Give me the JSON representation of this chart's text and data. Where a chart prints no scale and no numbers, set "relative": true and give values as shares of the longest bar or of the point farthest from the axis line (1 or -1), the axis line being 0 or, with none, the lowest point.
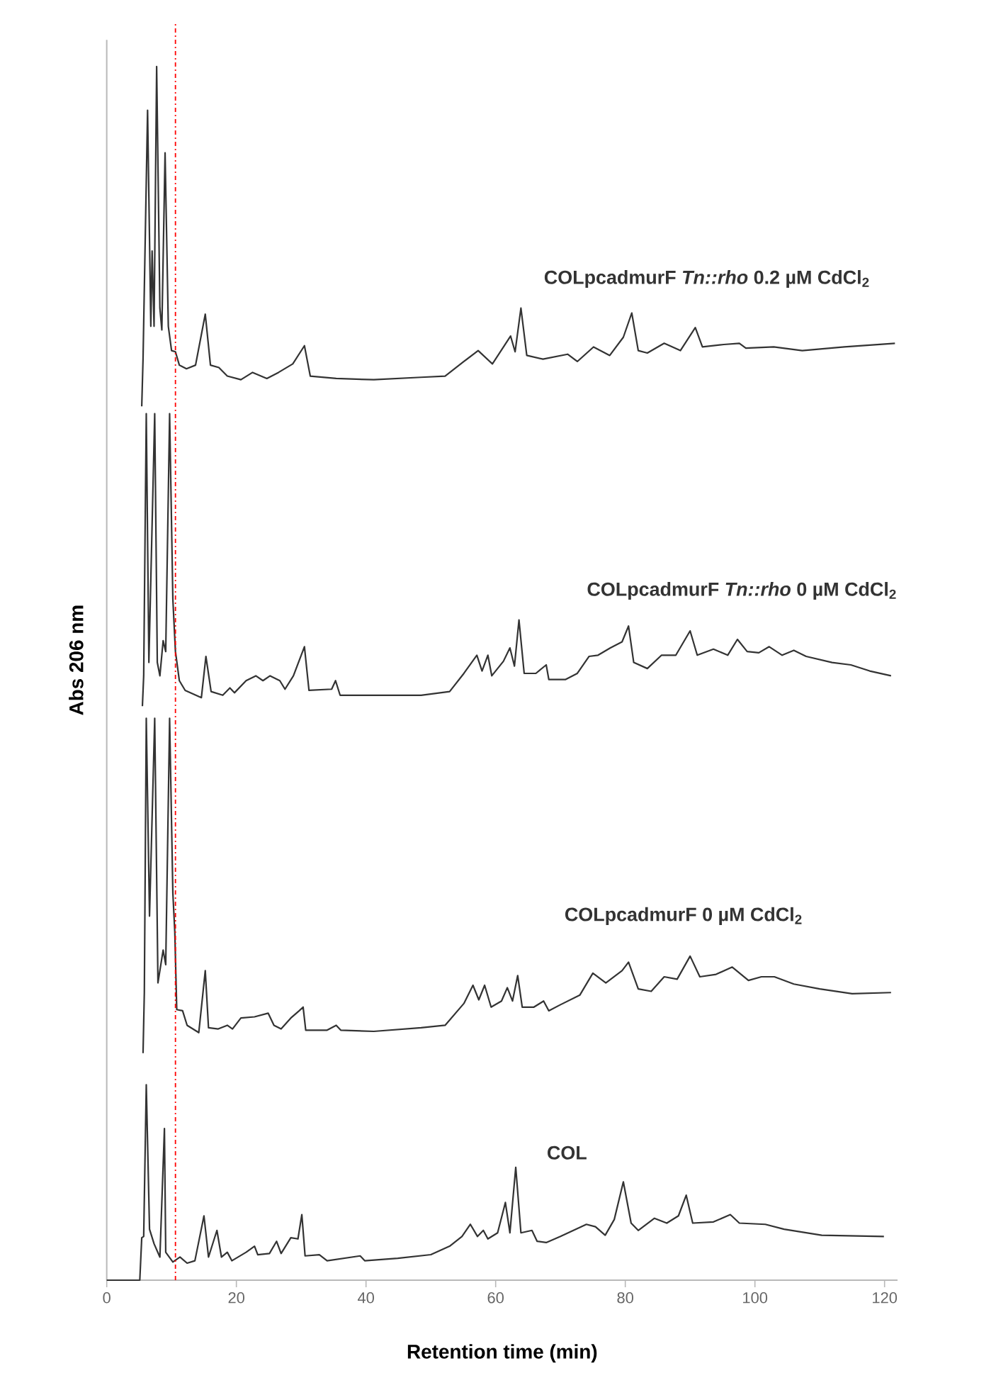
{
  "chart_data": {
    "type": "line",
    "relative": true,
    "xlabel": "Retention time (min)",
    "ylabel": "Abs 206 nm",
    "xlim": [
      0,
      122
    ],
    "xticks": [
      0,
      20,
      40,
      60,
      80,
      100,
      120
    ],
    "ref_lines": [
      {
        "axis": "x",
        "value": 10.6,
        "color": "#ff0000",
        "line_style": "dashdot"
      }
    ],
    "series": [
      {
        "name": "COLpcadmurF  *Tn::rho* 0.2 µM CdCl$_{2}$",
        "color": "#333333",
        "x": [
          5.4,
          5.6,
          6.3,
          6.8,
          7.0,
          7.3,
          7.7,
          8.2,
          8.5,
          9.0,
          9.5,
          10.0,
          10.6,
          11.2,
          12.3,
          13.7,
          15.2,
          16.0,
          17.3,
          18.6,
          20.7,
          22.5,
          24.7,
          26.5,
          28.7,
          30.5,
          31.4,
          35.4,
          41.2,
          48.5,
          52.2,
          55.1,
          57.3,
          59.5,
          62.3,
          63.0,
          63.9,
          64.8,
          67.3,
          71.1,
          72.6,
          75.1,
          77.6,
          79.7,
          81.0,
          82.0,
          83.4,
          86.0,
          88.5,
          90.8,
          91.9,
          95.2,
          97.6,
          98.6,
          102.9,
          107.3,
          113.8,
          121.6
        ],
        "values": [
          0.72,
          0.759,
          0.964,
          0.786,
          0.848,
          0.786,
          1.0,
          0.801,
          0.783,
          0.929,
          0.786,
          0.766,
          0.765,
          0.754,
          0.751,
          0.754,
          0.796,
          0.754,
          0.752,
          0.745,
          0.742,
          0.748,
          0.743,
          0.748,
          0.755,
          0.77,
          0.745,
          0.743,
          0.742,
          0.744,
          0.745,
          0.757,
          0.766,
          0.755,
          0.778,
          0.765,
          0.801,
          0.762,
          0.759,
          0.763,
          0.757,
          0.769,
          0.762,
          0.777,
          0.797,
          0.766,
          0.764,
          0.772,
          0.766,
          0.785,
          0.769,
          0.771,
          0.772,
          0.768,
          0.769,
          0.766,
          0.769,
          0.772
        ]
      },
      {
        "name": "COLpcadmurF  *Tn::rho* 0 µM CdCl$_{2}$",
        "color": "#333333",
        "x": [
          5.5,
          5.7,
          6.1,
          6.5,
          7.4,
          7.8,
          8.2,
          8.7,
          9.1,
          9.7,
          10.2,
          10.6,
          11.2,
          12.1,
          14.6,
          15.3,
          16.1,
          17.9,
          19.0,
          19.7,
          21.5,
          23.0,
          24.1,
          25.2,
          26.7,
          27.5,
          28.8,
          30.5,
          31.2,
          34.7,
          35.3,
          36.0,
          41.2,
          48.5,
          52.9,
          55.1,
          57.1,
          57.9,
          58.8,
          59.4,
          61.2,
          62.2,
          62.9,
          63.6,
          64.4,
          66.2,
          67.8,
          68.2,
          70.8,
          72.6,
          74.4,
          75.8,
          77.7,
          79.5,
          80.5,
          81.3,
          83.4,
          85.6,
          87.8,
          90.0,
          91.1,
          93.6,
          95.8,
          97.3,
          98.8,
          100.6,
          102.2,
          104.2,
          106.0,
          107.9,
          111.9,
          114.8,
          117.7,
          121.0
        ],
        "values": [
          0.473,
          0.498,
          0.714,
          0.509,
          0.714,
          0.509,
          0.498,
          0.527,
          0.518,
          0.714,
          0.561,
          0.518,
          0.494,
          0.486,
          0.48,
          0.514,
          0.485,
          0.482,
          0.488,
          0.484,
          0.494,
          0.498,
          0.494,
          0.498,
          0.494,
          0.487,
          0.498,
          0.522,
          0.486,
          0.487,
          0.494,
          0.482,
          0.482,
          0.482,
          0.485,
          0.5,
          0.515,
          0.502,
          0.515,
          0.498,
          0.51,
          0.521,
          0.506,
          0.544,
          0.5,
          0.5,
          0.507,
          0.495,
          0.495,
          0.5,
          0.514,
          0.515,
          0.521,
          0.526,
          0.539,
          0.509,
          0.504,
          0.515,
          0.515,
          0.535,
          0.515,
          0.52,
          0.515,
          0.528,
          0.518,
          0.517,
          0.522,
          0.515,
          0.519,
          0.514,
          0.509,
          0.507,
          0.502,
          0.498
        ]
      },
      {
        "name": "COLpcadmurF 0 µM CdCl$_{2}$",
        "color": "#333333",
        "x": [
          5.6,
          5.8,
          6.1,
          6.6,
          7.4,
          7.9,
          8.7,
          9.1,
          9.7,
          10.2,
          10.5,
          10.8,
          11.7,
          12.4,
          14.2,
          15.2,
          15.7,
          17.2,
          18.6,
          19.4,
          20.7,
          22.8,
          24.9,
          25.8,
          26.9,
          28.4,
          29.7,
          30.3,
          30.7,
          34.0,
          35.4,
          36.1,
          41.2,
          48.5,
          52.2,
          55.1,
          56.5,
          57.4,
          58.3,
          59.3,
          60.9,
          61.8,
          62.6,
          63.4,
          64.1,
          65.9,
          67.4,
          68.2,
          70,
          73,
          75,
          77,
          79.5,
          80.5,
          82,
          84,
          86,
          88,
          90,
          91.5,
          94,
          96.5,
          99,
          101,
          103,
          106,
          110,
          115,
          121
        ],
        "values": [
          0.187,
          0.237,
          0.463,
          0.3,
          0.463,
          0.245,
          0.272,
          0.26,
          0.463,
          0.319,
          0.287,
          0.223,
          0.222,
          0.21,
          0.204,
          0.255,
          0.208,
          0.207,
          0.21,
          0.207,
          0.216,
          0.217,
          0.22,
          0.21,
          0.207,
          0.216,
          0.222,
          0.225,
          0.206,
          0.206,
          0.21,
          0.206,
          0.205,
          0.208,
          0.21,
          0.228,
          0.243,
          0.231,
          0.243,
          0.225,
          0.23,
          0.241,
          0.23,
          0.251,
          0.225,
          0.225,
          0.23,
          0.222,
          0.227,
          0.235,
          0.253,
          0.245,
          0.255,
          0.262,
          0.24,
          0.238,
          0.25,
          0.248,
          0.267,
          0.25,
          0.252,
          0.258,
          0.247,
          0.25,
          0.25,
          0.244,
          0.24,
          0.236,
          0.237
        ]
      },
      {
        "name": "COL",
        "color": "#333333",
        "x": [
          0,
          5.1,
          5.4,
          5.7,
          6.1,
          6.6,
          7.3,
          8.2,
          8.9,
          9.1,
          10.2,
          11.3,
          12.4,
          13.6,
          15.0,
          15.7,
          17.0,
          17.7,
          18.6,
          19.3,
          21.5,
          22.8,
          23.3,
          25.1,
          26.2,
          26.9,
          28.4,
          29.5,
          30.1,
          30.6,
          32.8,
          34.0,
          39.1,
          39.8,
          44.9,
          50.0,
          52.9,
          54.8,
          56.1,
          57.2,
          58.1,
          58.8,
          60.3,
          61.5,
          62.2,
          63.1,
          63.9,
          65.6,
          66.4,
          67.8,
          70.0,
          74.0,
          75.4,
          76.9,
          78.3,
          79.7,
          80.9,
          82.0,
          84.5,
          86.4,
          88.2,
          89.4,
          90.4,
          93.6,
          96.2,
          97.6,
          101.6,
          104.5,
          110.3,
          119.9
        ],
        "values": [
          0,
          0,
          0.035,
          0.036,
          0.161,
          0.042,
          0.03,
          0.019,
          0.125,
          0.023,
          0.015,
          0.019,
          0.014,
          0.016,
          0.053,
          0.019,
          0.041,
          0.019,
          0.023,
          0.016,
          0.023,
          0.028,
          0.021,
          0.022,
          0.032,
          0.022,
          0.035,
          0.034,
          0.054,
          0.02,
          0.021,
          0.016,
          0.02,
          0.016,
          0.018,
          0.021,
          0.028,
          0.036,
          0.046,
          0.036,
          0.041,
          0.034,
          0.039,
          0.064,
          0.039,
          0.093,
          0.039,
          0.041,
          0.032,
          0.031,
          0.036,
          0.046,
          0.044,
          0.037,
          0.05,
          0.081,
          0.047,
          0.041,
          0.051,
          0.047,
          0.053,
          0.07,
          0.047,
          0.048,
          0.054,
          0.047,
          0.046,
          0.042,
          0.037,
          0.036
        ]
      }
    ]
  }
}
